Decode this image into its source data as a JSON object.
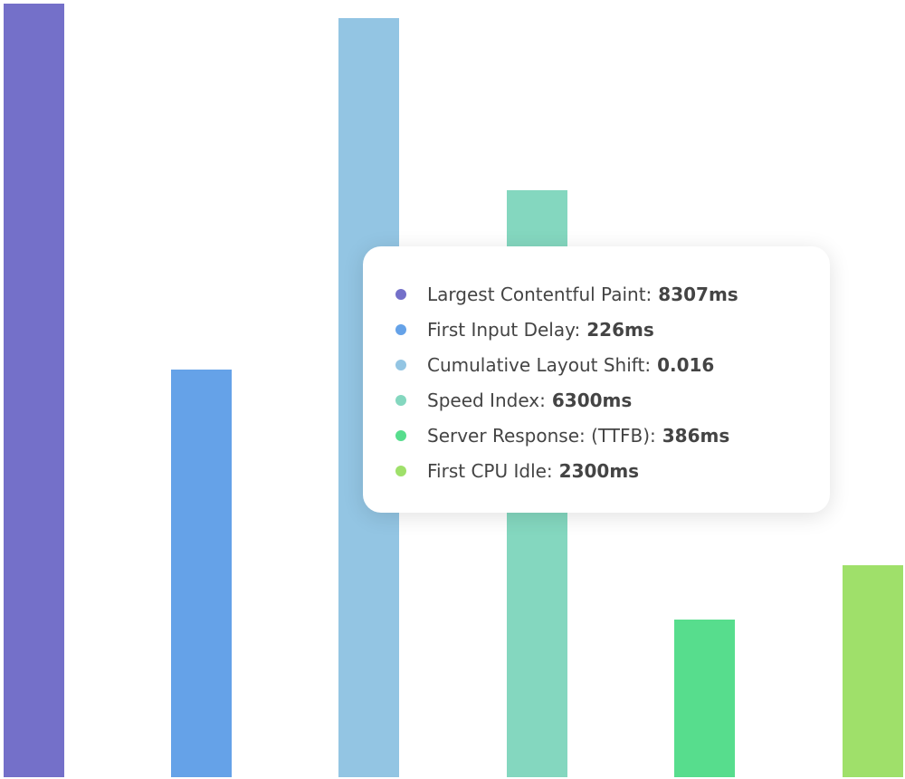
{
  "tooltip": {
    "items": [
      {
        "label": "Largest Contentful Paint:",
        "value": "8307ms",
        "color": "#7470c9"
      },
      {
        "label": "First Input Delay:",
        "value": "226ms",
        "color": "#65a2e8"
      },
      {
        "label": "Cumulative Layout Shift:",
        "value": "0.016",
        "color": "#93c5e3"
      },
      {
        "label": "Speed Index:",
        "value": "6300ms",
        "color": "#84d7bf"
      },
      {
        "label": "Server Response: (TTFB):",
        "value": "386ms",
        "color": "#57dd8d"
      },
      {
        "label": "First CPU Idle:",
        "value": "2300ms",
        "color": "#9fe06a"
      }
    ]
  }
}
